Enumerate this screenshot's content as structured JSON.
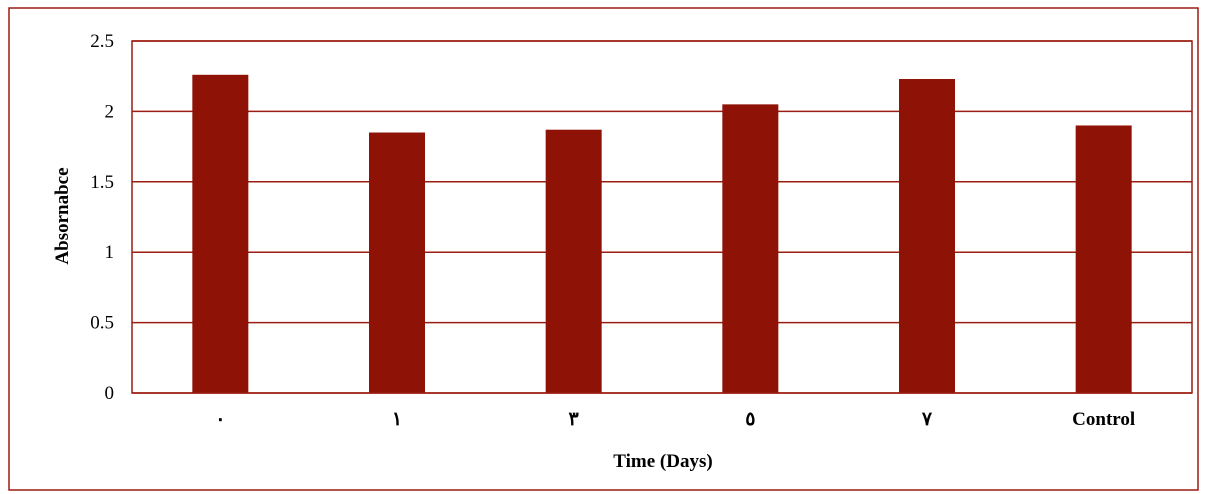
{
  "chart_data": {
    "type": "bar",
    "categories": [
      "٠",
      "١",
      "٣",
      "٥",
      "٧",
      "Control"
    ],
    "values": [
      2.26,
      1.85,
      1.87,
      2.05,
      2.23,
      1.9
    ],
    "title": "",
    "xlabel": "Time (Days)",
    "ylabel": "Absornabce",
    "ylim": [
      0,
      2.5
    ],
    "yticks": [
      0,
      0.5,
      1,
      1.5,
      2,
      2.5
    ],
    "ytick_labels": [
      "0",
      "0.5",
      "1",
      "1.5",
      "2",
      "2.5"
    ],
    "grid": true,
    "legend": "none",
    "bar_color": "#8f1207",
    "grid_color": "#9b1c10",
    "frame_color": "#9b1c10"
  }
}
